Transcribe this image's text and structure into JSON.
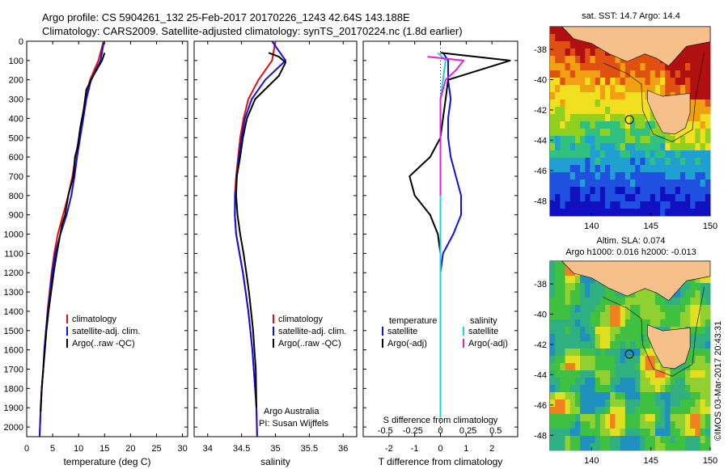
{
  "header": {
    "line1": "Argo profile: CS 5904261_132 25-Feb-2017 20170226_1243 42.64S 143.188E",
    "line2": "Climatology: CARS2009. Satellite-adjusted climatology: synTS_20170224.nc (1.8d earlier)"
  },
  "colors": {
    "climatology": "#e01010",
    "satellite": "#1010e0",
    "argo": "#000000",
    "sat_salinity": "#20d0e0",
    "argo_salinity": "#e020e0",
    "land": "#f6c08a"
  },
  "chart_data": [
    {
      "type": "line",
      "name": "temperature-profile",
      "xlabel": "temperature (deg C)",
      "xlim": [
        0,
        31
      ],
      "ylim": [
        2050,
        0
      ],
      "xticks": [
        "0",
        "5",
        "10",
        "15",
        "20",
        "25",
        "30"
      ],
      "yticks": [
        "0",
        "100",
        "200",
        "300",
        "400",
        "500",
        "600",
        "700",
        "800",
        "900",
        "1000",
        "1100",
        "1200",
        "1300",
        "1400",
        "1500",
        "1600",
        "1700",
        "1800",
        "1900",
        "2000"
      ],
      "legend": [
        "climatology",
        "satellite-adj. clim.",
        "Argo(..raw -QC)"
      ],
      "series": [
        {
          "name": "climatology",
          "color": "#e01010",
          "x": [
            14.8,
            13.8,
            12.2,
            11.3,
            10.7,
            10.1,
            9.4,
            8.8,
            8.0,
            7.0,
            6.0,
            5.3,
            4.8,
            4.4,
            4.0,
            3.7,
            3.4,
            3.2,
            2.9,
            2.7,
            2.5
          ],
          "y": [
            0,
            100,
            200,
            300,
            400,
            500,
            600,
            700,
            800,
            900,
            1000,
            1100,
            1200,
            1300,
            1400,
            1500,
            1600,
            1700,
            1800,
            1900,
            2050
          ]
        },
        {
          "name": "satellite-adj. clim.",
          "color": "#1010e0",
          "x": [
            14.9,
            14.2,
            12.4,
            11.5,
            10.9,
            10.3,
            9.7,
            9.2,
            8.6,
            7.7,
            6.5,
            5.5,
            4.9,
            4.5,
            4.1,
            3.7,
            3.4,
            3.2,
            2.9,
            2.7,
            2.5
          ],
          "y": [
            0,
            100,
            200,
            300,
            400,
            500,
            600,
            700,
            800,
            900,
            1000,
            1100,
            1200,
            1300,
            1400,
            1500,
            1600,
            1700,
            1800,
            1900,
            2050
          ]
        },
        {
          "name": "Argo(..raw -QC)",
          "color": "#000000",
          "x": [
            15.0,
            14.5,
            13.0,
            11.5,
            11.0,
            10.3,
            9.8,
            9.3,
            9.0,
            8.0,
            7.4,
            6.8,
            5.8,
            5.2,
            4.7,
            4.2,
            3.8,
            3.5,
            3.2,
            2.9,
            2.7
          ],
          "y": [
            60,
            100,
            170,
            250,
            350,
            450,
            550,
            600,
            700,
            800,
            900,
            950,
            1100,
            1200,
            1300,
            1400,
            1500,
            1600,
            1700,
            1800,
            1920
          ]
        }
      ]
    },
    {
      "type": "line",
      "name": "salinity-profile",
      "xlabel": "salinity",
      "xlim": [
        33.8,
        36.2
      ],
      "ylim": [
        2050,
        0
      ],
      "xticks": [
        "34",
        "34.5",
        "35",
        "35.5",
        "36"
      ],
      "legend": [
        "climatology",
        "satellite-adj. clim.",
        "Argo(..raw -QC)"
      ],
      "annotations": [
        "Argo Australia",
        "PI: Susan Wijffels"
      ],
      "series": [
        {
          "name": "climatology",
          "color": "#e01010",
          "x": [
            35.0,
            34.95,
            34.75,
            34.6,
            34.53,
            34.48,
            34.45,
            34.42,
            34.4,
            34.4,
            34.42,
            34.47,
            34.52,
            34.56,
            34.6,
            34.63,
            34.66,
            34.68,
            34.7,
            34.72,
            34.73
          ],
          "y": [
            0,
            100,
            200,
            300,
            400,
            500,
            600,
            700,
            800,
            900,
            1000,
            1100,
            1200,
            1300,
            1400,
            1500,
            1600,
            1700,
            1800,
            1900,
            2050
          ]
        },
        {
          "name": "satellite-adj. clim.",
          "color": "#1010e0",
          "x": [
            34.95,
            35.15,
            34.85,
            34.65,
            34.55,
            34.5,
            34.46,
            34.43,
            34.41,
            34.4,
            34.42,
            34.47,
            34.52,
            34.56,
            34.6,
            34.63,
            34.66,
            34.68,
            34.7,
            34.72,
            34.73
          ],
          "y": [
            0,
            100,
            200,
            300,
            400,
            500,
            600,
            700,
            800,
            900,
            1000,
            1100,
            1200,
            1300,
            1400,
            1500,
            1600,
            1700,
            1800,
            1900,
            2050
          ]
        },
        {
          "name": "Argo(..raw -QC)",
          "color": "#000000",
          "x": [
            34.9,
            35.05,
            35.15,
            35.05,
            34.7,
            34.58,
            34.52,
            34.48,
            34.43,
            34.42,
            34.44,
            34.48,
            34.53,
            34.57,
            34.61,
            34.64,
            34.67,
            34.69,
            34.71,
            34.72
          ],
          "y": [
            60,
            80,
            110,
            180,
            300,
            400,
            500,
            600,
            700,
            800,
            900,
            1000,
            1100,
            1200,
            1300,
            1400,
            1500,
            1600,
            1700,
            1900
          ]
        }
      ]
    },
    {
      "type": "line",
      "name": "difference-profile",
      "xlabel": "T difference from climatology",
      "xlabel_top": "S difference from climatology",
      "xlim": [
        -3,
        3
      ],
      "ylim": [
        2050,
        0
      ],
      "xticks": [
        "-2",
        "-1",
        "0",
        "1",
        "2"
      ],
      "xticks_top": [
        "-0.5",
        "-0.25",
        "0",
        "0.25",
        "0.5"
      ],
      "legend_headers": [
        "temperature",
        "salinity"
      ],
      "legend": [
        "satellite",
        "Argo(-adj)",
        "satellite",
        "Argo(-adj)"
      ],
      "series": [
        {
          "name": "temperature satellite",
          "color": "#1010e0",
          "x": [
            0.1,
            0.3,
            0.3,
            0.4,
            0.3,
            0.3,
            0.4,
            0.6,
            0.8,
            0.8,
            0.5,
            0.1,
            0.0,
            0.0,
            0.0,
            0.0,
            0.0,
            0.0,
            0.0,
            0.0
          ],
          "y": [
            60,
            100,
            200,
            300,
            400,
            500,
            600,
            700,
            800,
            900,
            1000,
            1100,
            1200,
            1300,
            1400,
            1500,
            1600,
            1700,
            1800,
            1950
          ]
        },
        {
          "name": "temperature Argo(-adj)",
          "color": "#000000",
          "x": [
            0.0,
            2.7,
            0.3,
            0.2,
            0.1,
            0.0,
            -0.4,
            -1.2,
            -1.0,
            -0.4,
            -0.1,
            0.0,
            0.0,
            0.0,
            0.0,
            0.0,
            0.0
          ],
          "y": [
            60,
            100,
            200,
            300,
            400,
            500,
            600,
            700,
            800,
            900,
            1000,
            1100,
            1200,
            1400,
            1600,
            1800,
            1950
          ]
        },
        {
          "name": "salinity satellite",
          "color": "#20d0e0",
          "x": [
            -0.1,
            0.2,
            0.1,
            0.0,
            0.0,
            0.0,
            0.0,
            0.0,
            0.0,
            0.0,
            0.0,
            0.0,
            0.0
          ],
          "y": [
            60,
            100,
            200,
            300,
            500,
            700,
            900,
            1100,
            1300,
            1500,
            1700,
            1850,
            1950
          ]
        },
        {
          "name": "salinity Argo(-adj)",
          "color": "#e020e0",
          "x": [
            -0.5,
            0.9,
            0.6,
            0.2,
            0.0,
            0.0,
            0.0,
            0.0
          ],
          "y": [
            80,
            100,
            150,
            200,
            300,
            400,
            600,
            800
          ]
        }
      ]
    },
    {
      "type": "heatmap",
      "name": "sst-map",
      "title": "sat. SST: 14.7 Argo: 14.4",
      "xticks": [
        "140",
        "145",
        "150"
      ],
      "yticks": [
        "-38",
        "-40",
        "-42",
        "-44",
        "-46",
        "-48"
      ],
      "xlim": [
        136.5,
        150
      ],
      "ylim": [
        -49,
        -36.5
      ],
      "argo_position": [
        143.188,
        -42.64
      ]
    },
    {
      "type": "heatmap",
      "name": "sla-map",
      "title": "Altim. SLA: 0.074",
      "subtitle": "Argo h1000: 0.016 h2000: -0.013",
      "xticks": [
        "140",
        "145",
        "150"
      ],
      "yticks": [
        "-38",
        "-40",
        "-42",
        "-44",
        "-46",
        "-48"
      ],
      "xlim": [
        136.5,
        150
      ],
      "ylim": [
        -49,
        -36.5
      ],
      "argo_position": [
        143.188,
        -42.64
      ]
    }
  ],
  "footer": {
    "credit": "©IMOS 03-Mar-2017 20:43:31"
  }
}
